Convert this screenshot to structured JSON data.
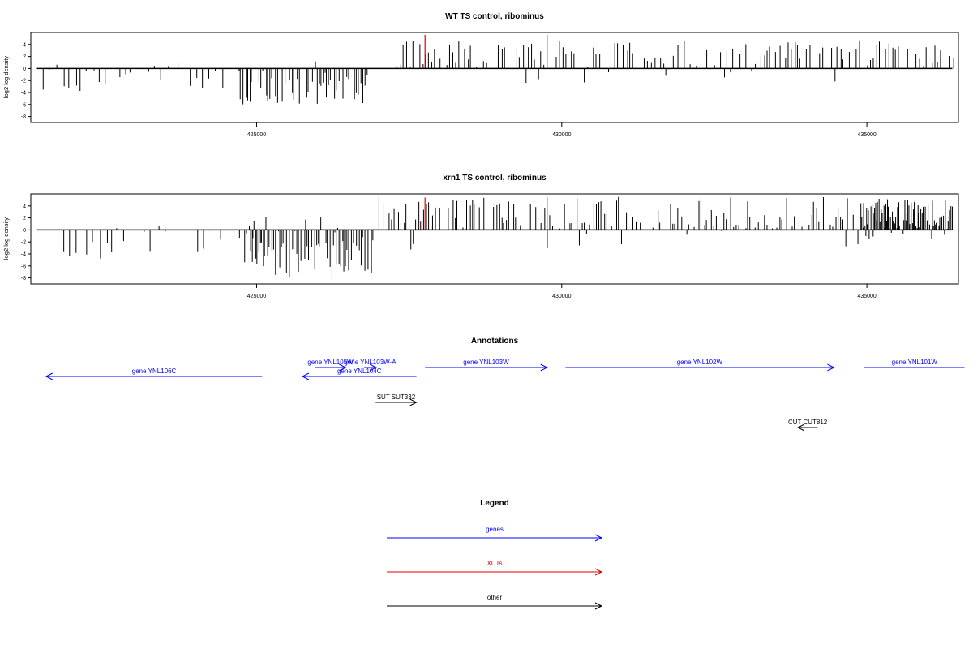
{
  "chart_data": [
    {
      "type": "bar",
      "title": "WT TS control, ribominus",
      "ylabel": "log2 log density",
      "xlabel": "",
      "xlim": [
        421300,
        436500
      ],
      "ylim": [
        -9,
        6
      ],
      "yticks": [
        -8,
        -6,
        -4,
        -2,
        0,
        2,
        4
      ],
      "xticks": [
        425000,
        430000,
        435000
      ],
      "grid": false,
      "series": [
        {
          "color": "#000000",
          "segments": [
            {
              "from": 421400,
              "to": 424500,
              "step": 100,
              "min": -3.8,
              "max": 1.2,
              "sign": "mostly-negative"
            },
            {
              "from": 424700,
              "to": 426800,
              "step": 30,
              "min": -6,
              "max": 1.5,
              "sign": "negative"
            },
            {
              "from": 427300,
              "to": 436400,
              "step": 50,
              "min": -2.5,
              "max": 4.7,
              "sign": "positive"
            }
          ]
        },
        {
          "color": "#e00000",
          "points": [
            [
              427760,
              5.6
            ],
            [
              429760,
              5.6
            ]
          ]
        }
      ]
    },
    {
      "type": "bar",
      "title": "xrn1 TS control, ribominus",
      "ylabel": "log2 log density",
      "xlabel": "",
      "xlim": [
        421300,
        436500
      ],
      "ylim": [
        -9,
        6
      ],
      "yticks": [
        -8,
        -6,
        -4,
        -2,
        0,
        2,
        4
      ],
      "xticks": [
        425000,
        430000,
        435000
      ],
      "grid": false,
      "series": [
        {
          "color": "#000000",
          "segments": [
            {
              "from": 421800,
              "to": 424900,
              "step": 100,
              "min": -4.8,
              "max": 1.0,
              "sign": "mostly-negative"
            },
            {
              "from": 424800,
              "to": 426900,
              "step": 25,
              "min": -8.2,
              "max": 2.2,
              "sign": "negative"
            },
            {
              "from": 427000,
              "to": 434900,
              "step": 40,
              "min": -4.0,
              "max": 5.5,
              "sign": "positive"
            },
            {
              "from": 434900,
              "to": 436400,
              "step": 15,
              "min": -2.5,
              "max": 5.2,
              "sign": "positive"
            }
          ]
        },
        {
          "color": "#e00000",
          "points": [
            [
              427760,
              5.4
            ],
            [
              429760,
              5.4
            ]
          ]
        }
      ]
    }
  ],
  "annotations": {
    "title": "Annotations",
    "features": [
      {
        "label": "gene YNL105W",
        "start": 425960,
        "end": 426460,
        "strand": "+",
        "row": 0,
        "color": "#0000ff"
      },
      {
        "label": "gene YNL103W-A",
        "start": 426760,
        "end": 426960,
        "strand": "+",
        "row": 0,
        "color": "#0000ff"
      },
      {
        "label": "gene YNL103W",
        "start": 427760,
        "end": 429760,
        "strand": "+",
        "row": 0,
        "color": "#0000ff"
      },
      {
        "label": "gene YNL102W",
        "start": 430060,
        "end": 434460,
        "strand": "+",
        "row": 0,
        "color": "#0000ff"
      },
      {
        "label": "gene YNL101W",
        "start": 434960,
        "end": 436600,
        "strand": "+",
        "row": 0,
        "color": "#0000ff"
      },
      {
        "label": "gene YNL106C",
        "start": 421550,
        "end": 425090,
        "strand": "-",
        "row": 1,
        "color": "#0000ff"
      },
      {
        "label": "gene YNL104C",
        "start": 425750,
        "end": 427620,
        "strand": "-",
        "row": 1,
        "color": "#0000ff"
      },
      {
        "label": "SUT SUT332",
        "start": 426950,
        "end": 427620,
        "strand": "+",
        "row": 2,
        "color": "#000000"
      },
      {
        "label": "CUT CUT812",
        "start": 433870,
        "end": 434190,
        "strand": "-",
        "row": 3,
        "color": "#000000"
      }
    ]
  },
  "legend": {
    "title": "Legend",
    "items": [
      {
        "label": "genes",
        "color": "#0000ff"
      },
      {
        "label": "XUTs",
        "color": "#e00000"
      },
      {
        "label": "other",
        "color": "#000000"
      }
    ]
  }
}
